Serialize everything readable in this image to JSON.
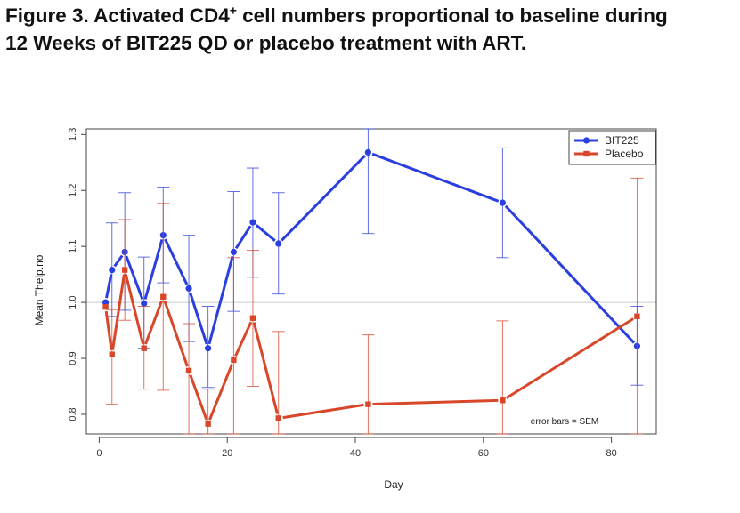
{
  "figure": {
    "title_main": "Figure 3.  Activated CD4",
    "title_sup": "+",
    "title_rest": " cell numbers proportional to baseline during",
    "title_line2": "12 Weeks of BIT225 QD or placebo treatment with ART."
  },
  "chart_data": {
    "type": "line",
    "title": "",
    "xlabel": "Day",
    "ylabel": "Mean Thelp.no",
    "xlim": [
      -2,
      87
    ],
    "ylim": [
      0.765,
      1.31
    ],
    "xticks": [
      0,
      20,
      40,
      60,
      80
    ],
    "yticks": [
      0.8,
      0.9,
      1.0,
      1.1,
      1.2,
      1.3
    ],
    "ytick_labels": [
      "0.8",
      "0.9",
      "1.0",
      "1.1",
      "1.2",
      "1.3"
    ],
    "reference_line_y": 1.0,
    "legend_position": "top-right",
    "note": "error bars = SEM",
    "series": [
      {
        "name": "BIT225",
        "color": "#2b3fe0",
        "marker": "circle",
        "x": [
          1,
          2,
          4,
          7,
          10,
          14,
          17,
          21,
          24,
          28,
          42,
          63,
          84
        ],
        "y": [
          1.0,
          1.058,
          1.09,
          0.998,
          1.12,
          1.025,
          0.918,
          1.09,
          1.143,
          1.105,
          1.268,
          1.178,
          0.922
        ],
        "upper": [
          1.0,
          1.142,
          1.196,
          1.081,
          1.206,
          1.12,
          0.993,
          1.198,
          1.24,
          1.196,
          1.31,
          1.276,
          0.993
        ],
        "lower": [
          1.0,
          0.975,
          0.986,
          0.918,
          1.035,
          0.93,
          0.848,
          0.984,
          1.045,
          1.015,
          1.123,
          1.08,
          0.852
        ]
      },
      {
        "name": "Placebo",
        "color": "#d8472a",
        "marker": "square",
        "x": [
          1,
          2,
          4,
          7,
          10,
          14,
          17,
          21,
          24,
          28,
          42,
          63,
          84
        ],
        "y": [
          0.992,
          0.907,
          1.058,
          0.918,
          1.01,
          0.878,
          0.783,
          0.897,
          0.972,
          0.793,
          0.818,
          0.825,
          0.975
        ],
        "upper": [
          0.992,
          0.987,
          1.148,
          0.993,
          1.177,
          0.962,
          0.845,
          1.08,
          1.093,
          0.948,
          0.942,
          0.967,
          1.222
        ],
        "lower": [
          0.992,
          0.818,
          0.968,
          0.845,
          0.843,
          0.765,
          0.765,
          0.765,
          0.85,
          0.765,
          0.765,
          0.765,
          0.765
        ]
      }
    ]
  }
}
